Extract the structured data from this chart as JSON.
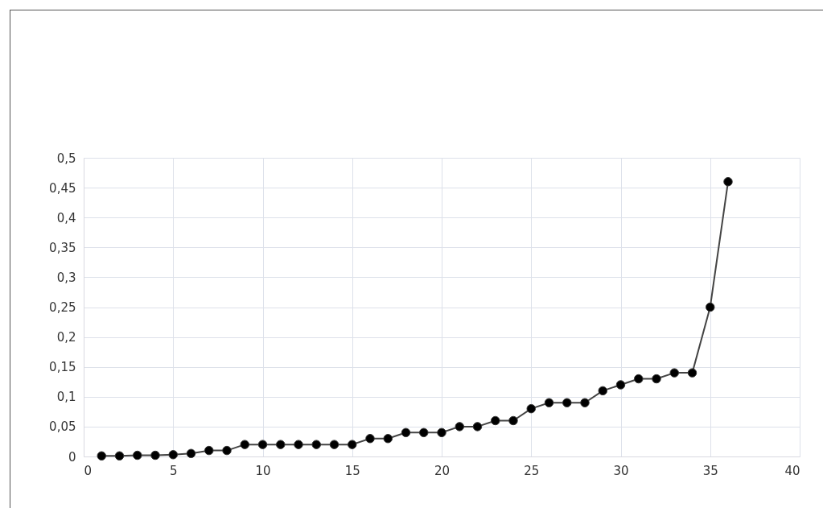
{
  "chart_data": {
    "type": "line",
    "x": [
      1,
      2,
      3,
      4,
      5,
      6,
      7,
      8,
      9,
      10,
      11,
      12,
      13,
      14,
      15,
      16,
      17,
      18,
      19,
      20,
      21,
      22,
      23,
      24,
      25,
      26,
      27,
      28,
      29,
      30,
      31,
      32,
      33,
      34,
      35,
      36
    ],
    "series": [
      {
        "color": "#000000",
        "values": [
          0.001,
          0.001,
          0.002,
          0.002,
          0.003,
          0.005,
          0.01,
          0.01,
          0.02,
          0.02,
          0.02,
          0.02,
          0.02,
          0.02,
          0.02,
          0.03,
          0.03,
          0.04,
          0.04,
          0.04,
          0.05,
          0.05,
          0.06,
          0.06,
          0.08,
          0.09,
          0.09,
          0.09,
          0.11,
          0.12,
          0.13,
          0.13,
          0.14,
          0.14,
          0.25,
          0.46
        ]
      }
    ],
    "xlim": [
      0,
      40
    ],
    "xticks": [
      0,
      5,
      10,
      15,
      20,
      25,
      30,
      35,
      40
    ],
    "ylim": [
      0,
      0.5
    ],
    "yticks": [
      0,
      {
        "value": 0.05,
        "label": "0,05"
      },
      {
        "value": 0.1,
        "label": "0,1"
      },
      {
        "value": 0.15,
        "label": "0,15"
      },
      {
        "value": 0.2,
        "label": "0,2"
      },
      {
        "value": 0.25,
        "label": "0,25"
      },
      {
        "value": 0.3,
        "label": "0,3"
      },
      {
        "value": 0.35,
        "label": "0,35"
      },
      {
        "value": 0.4,
        "label": "0,4"
      },
      {
        "value": 0.45,
        "label": "0,45"
      },
      {
        "value": 0.5,
        "label": "0,5"
      }
    ],
    "grid": true,
    "marker": "circle",
    "line_style": "solid"
  }
}
